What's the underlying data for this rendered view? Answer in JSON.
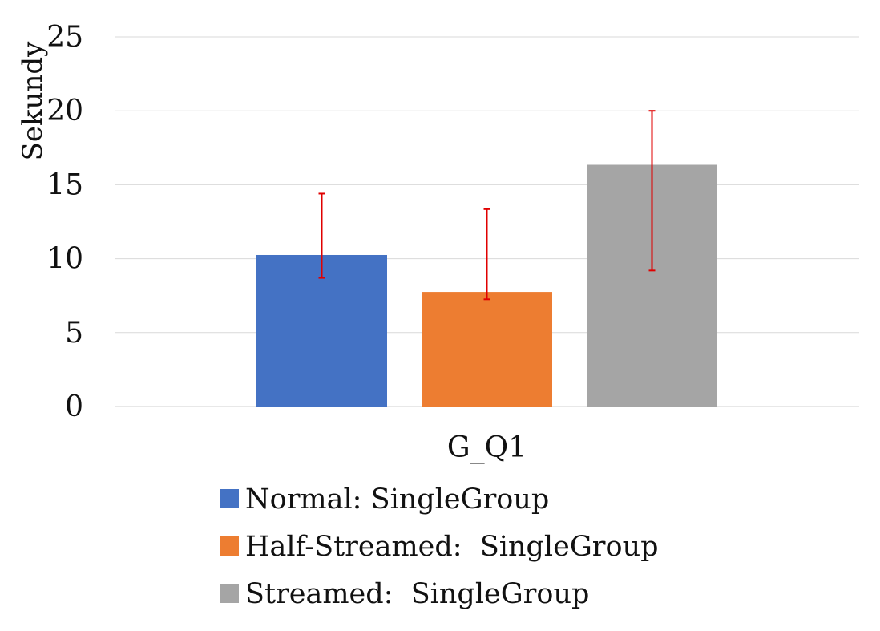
{
  "chart_data": {
    "type": "bar",
    "title": "",
    "xlabel": "",
    "ylabel": "Sekundy",
    "ylim": [
      0,
      25
    ],
    "yticks": [
      0,
      5,
      10,
      15,
      20,
      25
    ],
    "grid": true,
    "legend_position": "bottom",
    "categories": [
      "G_Q1"
    ],
    "series": [
      {
        "name": "Normal: SingleGroup",
        "color": "#4472C4",
        "values": [
          10.25
        ],
        "error_low": [
          8.7
        ],
        "error_high": [
          14.4
        ]
      },
      {
        "name": "Half-Streamed:  SingleGroup",
        "color": "#ED7D31",
        "values": [
          7.75
        ],
        "error_low": [
          7.25
        ],
        "error_high": [
          13.35
        ]
      },
      {
        "name": "Streamed:  SingleGroup",
        "color": "#A5A5A5",
        "values": [
          16.35
        ],
        "error_low": [
          9.2
        ],
        "error_high": [
          20.0
        ]
      }
    ],
    "error_bar_color": "#E00000"
  }
}
